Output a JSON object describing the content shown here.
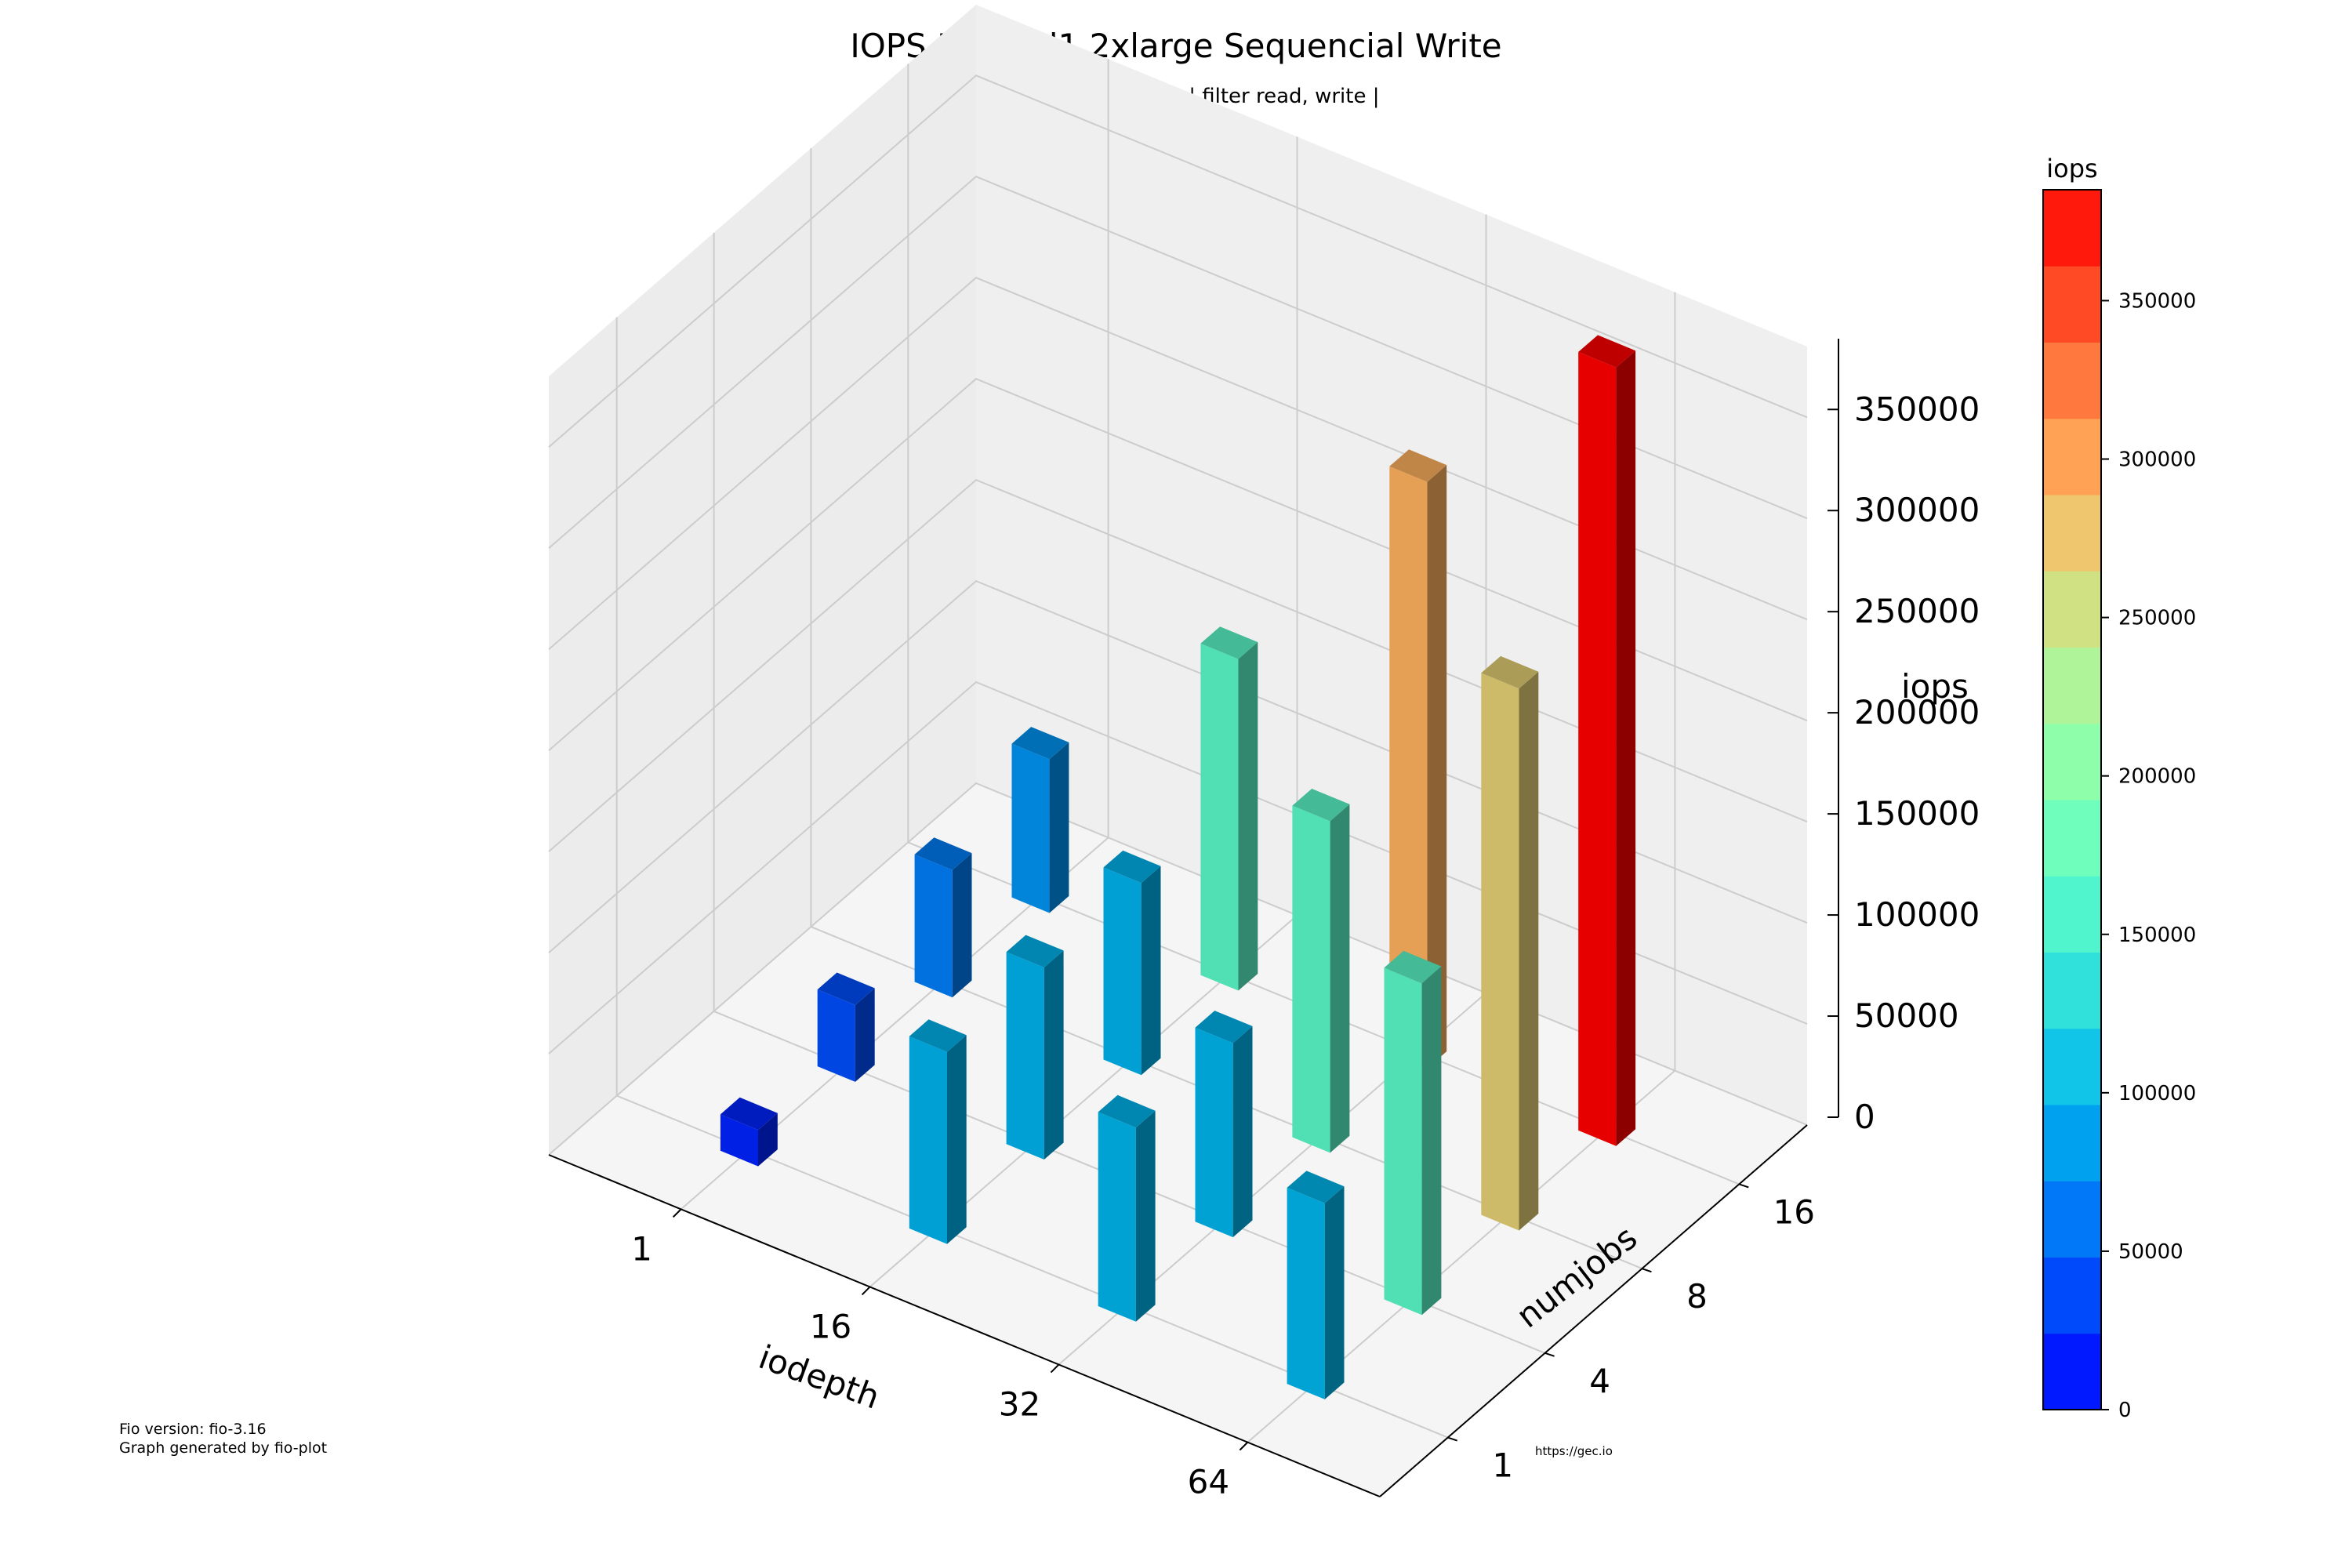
{
  "header": {
    "title": "IOPS Flavor l1.2xlarge Sequencial Write",
    "subtitle": "| rw write | type iops | filter read, write |"
  },
  "footer": {
    "version": "Fio version: fio-3.16",
    "generated": "Graph generated by fio-plot",
    "credit": "https://gec.io"
  },
  "colorbar": {
    "label": "iops",
    "ticks": [
      0,
      50000,
      100000,
      150000,
      200000,
      250000,
      300000,
      350000
    ],
    "max": 385000
  },
  "chart_data": {
    "type": "bar3d",
    "title": "IOPS Flavor l1.2xlarge Sequencial Write",
    "subtitle": "| rw write | type iops | filter read, write |",
    "xlabel": "iodepth",
    "ylabel": "numjobs",
    "zlabel": "iops",
    "x_categories": [
      "1",
      "16",
      "32",
      "64"
    ],
    "y_categories": [
      "1",
      "4",
      "8",
      "16"
    ],
    "zlim": [
      0,
      385000
    ],
    "z_ticks": [
      0,
      50000,
      100000,
      150000,
      200000,
      250000,
      300000,
      350000
    ],
    "bars": [
      {
        "iodepth": "1",
        "numjobs": "1",
        "iops": 18000
      },
      {
        "iodepth": "1",
        "numjobs": "4",
        "iops": 38000
      },
      {
        "iodepth": "1",
        "numjobs": "8",
        "iops": 63000
      },
      {
        "iodepth": "1",
        "numjobs": "16",
        "iops": 76000
      },
      {
        "iodepth": "16",
        "numjobs": "1",
        "iops": 95000
      },
      {
        "iodepth": "16",
        "numjobs": "4",
        "iops": 95000
      },
      {
        "iodepth": "16",
        "numjobs": "8",
        "iops": 95000
      },
      {
        "iodepth": "16",
        "numjobs": "16",
        "iops": 164000
      },
      {
        "iodepth": "32",
        "numjobs": "1",
        "iops": 96000
      },
      {
        "iodepth": "32",
        "numjobs": "4",
        "iops": 96000
      },
      {
        "iodepth": "32",
        "numjobs": "8",
        "iops": 164000
      },
      {
        "iodepth": "32",
        "numjobs": "16",
        "iops": 290000
      },
      {
        "iodepth": "64",
        "numjobs": "1",
        "iops": 97000
      },
      {
        "iodepth": "64",
        "numjobs": "4",
        "iops": 164000
      },
      {
        "iodepth": "64",
        "numjobs": "8",
        "iops": 268000
      },
      {
        "iodepth": "64",
        "numjobs": "16",
        "iops": 385000
      }
    ]
  }
}
